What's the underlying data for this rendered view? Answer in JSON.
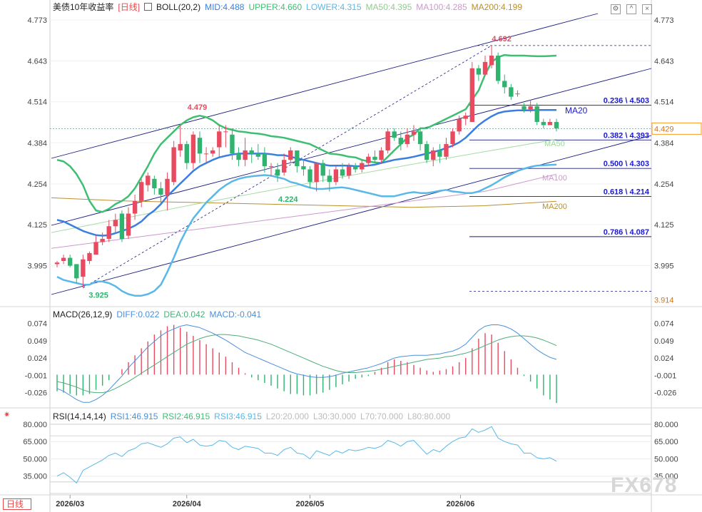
{
  "header": {
    "title": "美债10年收益率",
    "period": "[日线]",
    "boll": {
      "label": "BOLL(20,2)",
      "mid": "MID:4.488",
      "upper": "UPPER:4.660",
      "lower": "LOWER:4.315"
    },
    "ma": {
      "ma50": "MA50:4.395",
      "ma100": "MA100:4.285",
      "ma200": "MA200:4.199"
    }
  },
  "macd_header": {
    "label": "MACD(26,12,9)",
    "diff": "DIFF:0.022",
    "dea": "DEA:0.042",
    "macd": "MACD:-0.041"
  },
  "rsi_header": {
    "label": "RSI(14,14,14)",
    "rsi1": "RSI1:46.915",
    "rsi2": "RSI2:46.915",
    "rsi3": "RSI3:46.915",
    "l20": "L20:20.000",
    "l30": "L30:30.000",
    "l70": "L70:70.000",
    "l80": "L80:80.000"
  },
  "footer": {
    "period_tag": "日线",
    "watermark": "FX678"
  },
  "colors": {
    "up": "#e84a5f",
    "down": "#2fb36f",
    "ma20": "#3a7fdf",
    "bb": "#58b8e8",
    "upper": "#3dbf72",
    "ma50": "#a5dca5",
    "ma100": "#cc99cc",
    "ma200": "#b8902e",
    "channel": "#1a1a80",
    "price_box": "#f59b1d",
    "diff": "#4a90d9",
    "dea": "#4caf7a"
  },
  "chart_data": {
    "type": "candlestick",
    "x_ticks": [
      "2026/03",
      "2026/04",
      "2026/05",
      "2026/06"
    ],
    "main_y_ticks": [
      4.773,
      4.643,
      4.514,
      4.384,
      4.254,
      4.125,
      3.995
    ],
    "main_ylim": [
      3.87,
      4.8
    ],
    "price_labels": [
      "4.429",
      "3.914"
    ],
    "annotations": [
      "4.692",
      "4.479",
      "4.224",
      "3.925"
    ],
    "candles": [
      [
        4.0,
        4.005,
        4.01,
        3.99
      ],
      [
        4.01,
        4.02,
        4.03,
        4.0
      ],
      [
        4.02,
        3.995,
        4.03,
        3.99
      ],
      [
        4.0,
        3.955,
        4.0,
        3.94
      ],
      [
        3.96,
        4.015,
        4.03,
        3.925
      ],
      [
        4.01,
        4.035,
        4.04,
        4.0
      ],
      [
        4.03,
        4.07,
        4.09,
        4.03
      ],
      [
        4.07,
        4.08,
        4.1,
        4.06
      ],
      [
        4.08,
        4.12,
        4.14,
        4.07
      ],
      [
        4.12,
        4.14,
        4.16,
        4.1
      ],
      [
        4.16,
        4.08,
        4.17,
        4.07
      ],
      [
        4.09,
        4.16,
        4.18,
        4.08
      ],
      [
        4.16,
        4.2,
        4.22,
        4.14
      ],
      [
        4.2,
        4.26,
        4.27,
        4.18
      ],
      [
        4.25,
        4.28,
        4.29,
        4.23
      ],
      [
        4.27,
        4.24,
        4.28,
        4.22
      ],
      [
        4.24,
        4.22,
        4.26,
        4.19
      ],
      [
        4.22,
        4.27,
        4.29,
        4.17
      ],
      [
        4.26,
        4.37,
        4.39,
        4.25
      ],
      [
        4.36,
        4.38,
        4.44,
        4.34
      ],
      [
        4.38,
        4.32,
        4.39,
        4.3
      ],
      [
        4.32,
        4.41,
        4.42,
        4.3
      ],
      [
        4.4,
        4.35,
        4.42,
        4.32
      ],
      [
        4.35,
        4.35,
        4.37,
        4.32
      ],
      [
        4.35,
        4.36,
        4.37,
        4.34
      ],
      [
        4.37,
        4.42,
        4.44,
        4.34
      ],
      [
        4.42,
        4.42,
        4.44,
        4.37
      ],
      [
        4.41,
        4.35,
        4.43,
        4.33
      ],
      [
        4.35,
        4.33,
        4.37,
        4.31
      ],
      [
        4.33,
        4.36,
        4.4,
        4.31
      ],
      [
        4.36,
        4.35,
        4.37,
        4.32
      ],
      [
        4.35,
        4.34,
        4.38,
        4.33
      ],
      [
        4.35,
        4.31,
        4.37,
        4.29
      ],
      [
        4.31,
        4.31,
        4.32,
        4.28
      ],
      [
        4.3,
        4.28,
        4.32,
        4.26
      ],
      [
        4.29,
        4.33,
        4.35,
        4.28
      ],
      [
        4.33,
        4.36,
        4.37,
        4.32
      ],
      [
        4.36,
        4.31,
        4.36,
        4.29
      ],
      [
        4.31,
        4.3,
        4.33,
        4.28
      ],
      [
        4.3,
        4.26,
        4.31,
        4.24
      ],
      [
        4.26,
        4.32,
        4.32,
        4.23
      ],
      [
        4.32,
        4.28,
        4.33,
        4.26
      ],
      [
        4.28,
        4.26,
        4.3,
        4.23
      ],
      [
        4.26,
        4.3,
        4.31,
        4.25
      ],
      [
        4.3,
        4.28,
        4.32,
        4.27
      ],
      [
        4.28,
        4.31,
        4.32,
        4.27
      ],
      [
        4.31,
        4.3,
        4.32,
        4.29
      ],
      [
        4.3,
        4.32,
        4.33,
        4.29
      ],
      [
        4.32,
        4.34,
        4.35,
        4.31
      ],
      [
        4.34,
        4.33,
        4.36,
        4.32
      ],
      [
        4.33,
        4.36,
        4.37,
        4.32
      ],
      [
        4.36,
        4.42,
        4.43,
        4.35
      ],
      [
        4.42,
        4.4,
        4.43,
        4.39
      ],
      [
        4.4,
        4.38,
        4.42,
        4.36
      ],
      [
        4.38,
        4.41,
        4.43,
        4.37
      ],
      [
        4.41,
        4.42,
        4.44,
        4.39
      ],
      [
        4.42,
        4.38,
        4.43,
        4.36
      ],
      [
        4.38,
        4.33,
        4.39,
        4.32
      ],
      [
        4.33,
        4.36,
        4.37,
        4.31
      ],
      [
        4.36,
        4.34,
        4.38,
        4.32
      ],
      [
        4.34,
        4.38,
        4.4,
        4.33
      ],
      [
        4.38,
        4.42,
        4.43,
        4.37
      ],
      [
        4.42,
        4.46,
        4.47,
        4.41
      ],
      [
        4.46,
        4.47,
        4.48,
        4.44
      ],
      [
        4.45,
        4.62,
        4.64,
        4.45
      ],
      [
        4.62,
        4.6,
        4.63,
        4.58
      ],
      [
        4.6,
        4.64,
        4.66,
        4.6
      ],
      [
        4.63,
        4.66,
        4.692,
        4.62
      ],
      [
        4.66,
        4.58,
        4.67,
        4.57
      ],
      [
        4.58,
        4.56,
        4.6,
        4.54
      ],
      [
        4.56,
        4.53,
        4.57,
        4.52
      ],
      [
        4.54,
        4.54,
        4.55,
        4.53
      ],
      [
        4.5,
        4.49,
        4.51,
        4.48
      ],
      [
        4.49,
        4.5,
        4.52,
        4.48
      ],
      [
        4.5,
        4.45,
        4.51,
        4.44
      ],
      [
        4.45,
        4.44,
        4.46,
        4.43
      ],
      [
        4.44,
        4.45,
        4.46,
        4.44
      ],
      [
        4.45,
        4.43,
        4.46,
        4.42
      ]
    ],
    "boll_upper": [
      4.33,
      4.325,
      4.31,
      4.285,
      4.25,
      4.2,
      4.17,
      4.165,
      4.175,
      4.19,
      4.2,
      4.215,
      4.24,
      4.275,
      4.31,
      4.35,
      4.38,
      4.4,
      4.42,
      4.44,
      4.455,
      4.465,
      4.47,
      4.465,
      4.455,
      4.44,
      4.43,
      4.425,
      4.42,
      4.418,
      4.415,
      4.413,
      4.41,
      4.405,
      4.403,
      4.4,
      4.395,
      4.39,
      4.385,
      4.38,
      4.37,
      4.36,
      4.35,
      4.348,
      4.345,
      4.34,
      4.338,
      4.33,
      4.325,
      4.322,
      4.32,
      4.34,
      4.36,
      4.38,
      4.4,
      4.41,
      4.43,
      4.43,
      4.44,
      4.45,
      4.46,
      4.47,
      4.48,
      4.49,
      4.52,
      4.55,
      4.6,
      4.64,
      4.655,
      4.662,
      4.66,
      4.66,
      4.66,
      4.659,
      4.658,
      4.658,
      4.659,
      4.66
    ],
    "boll_mid": [
      4.14,
      4.135,
      4.125,
      4.115,
      4.105,
      4.098,
      4.092,
      4.09,
      4.092,
      4.098,
      4.105,
      4.112,
      4.122,
      4.135,
      4.155,
      4.17,
      4.19,
      4.215,
      4.235,
      4.255,
      4.275,
      4.295,
      4.31,
      4.32,
      4.33,
      4.338,
      4.343,
      4.347,
      4.35,
      4.35,
      4.35,
      4.35,
      4.35,
      4.348,
      4.345,
      4.345,
      4.34,
      4.335,
      4.33,
      4.325,
      4.32,
      4.315,
      4.312,
      4.312,
      4.312,
      4.312,
      4.31,
      4.31,
      4.312,
      4.315,
      4.32,
      4.325,
      4.33,
      4.333,
      4.336,
      4.34,
      4.345,
      4.35,
      4.355,
      4.36,
      4.368,
      4.375,
      4.385,
      4.4,
      4.42,
      4.44,
      4.455,
      4.468,
      4.478,
      4.483,
      4.485,
      4.487,
      4.487,
      4.487,
      4.488,
      4.488,
      4.488,
      4.488
    ],
    "boll_lower": [
      3.96,
      3.95,
      3.945,
      3.94,
      3.935,
      3.935,
      3.945,
      3.945,
      3.94,
      3.93,
      3.915,
      3.905,
      3.9,
      3.9,
      3.905,
      3.915,
      3.935,
      3.975,
      4.02,
      4.07,
      4.11,
      4.145,
      4.17,
      4.195,
      4.215,
      4.235,
      4.25,
      4.262,
      4.27,
      4.275,
      4.278,
      4.28,
      4.282,
      4.28,
      4.275,
      4.27,
      4.26,
      4.255,
      4.248,
      4.242,
      4.238,
      4.238,
      4.24,
      4.242,
      4.243,
      4.24,
      4.235,
      4.23,
      4.225,
      4.22,
      4.215,
      4.215,
      4.215,
      4.22,
      4.225,
      4.228,
      4.225,
      4.225,
      4.228,
      4.232,
      4.235,
      4.23,
      4.228,
      4.225,
      4.225,
      4.23,
      4.24,
      4.25,
      4.262,
      4.275,
      4.285,
      4.295,
      4.302,
      4.308,
      4.312,
      4.313,
      4.314,
      4.315
    ],
    "ma50": [
      4.1,
      4.145,
      4.19,
      4.232,
      4.275,
      4.316,
      4.356,
      4.395
    ],
    "ma100": [
      4.05,
      4.08,
      4.11,
      4.14,
      4.17,
      4.2,
      4.23,
      4.285
    ],
    "ma200": [
      4.21,
      4.2,
      4.195,
      4.19,
      4.185,
      4.18,
      4.185,
      4.199
    ],
    "fib_levels": [
      {
        "label": "0.236 \\ 4.503",
        "value": 4.503
      },
      {
        "label": "0.382 \\ 4.393",
        "value": 4.393
      },
      {
        "label": "0.500 \\ 4.303",
        "value": 4.303
      },
      {
        "label": "0.618 \\ 4.214",
        "value": 4.214
      },
      {
        "label": "0.786 \\ 4.087",
        "value": 4.087
      }
    ],
    "ma_labels": [
      "MA20",
      "MA50",
      "MA100",
      "MA200"
    ],
    "macd": {
      "y_ticks": [
        0.074,
        0.049,
        0.024,
        -0.001,
        -0.026
      ],
      "ylim": [
        -0.046,
        0.088
      ],
      "hist": [
        -0.024,
        -0.026,
        -0.028,
        -0.03,
        -0.03,
        -0.028,
        -0.022,
        -0.016,
        -0.008,
        0.0,
        0.008,
        0.018,
        0.028,
        0.038,
        0.048,
        0.058,
        0.064,
        0.07,
        0.072,
        0.068,
        0.062,
        0.056,
        0.05,
        0.044,
        0.038,
        0.032,
        0.026,
        0.018,
        0.01,
        0.002,
        -0.004,
        -0.008,
        -0.012,
        -0.016,
        -0.02,
        -0.024,
        -0.028,
        -0.028,
        -0.03,
        -0.03,
        -0.028,
        -0.026,
        -0.022,
        -0.018,
        -0.014,
        -0.01,
        -0.006,
        -0.004,
        -0.002,
        0.004,
        0.01,
        0.018,
        0.022,
        0.02,
        0.018,
        0.014,
        0.01,
        0.006,
        0.004,
        0.006,
        0.008,
        0.012,
        0.018,
        0.024,
        0.038,
        0.052,
        0.06,
        0.058,
        0.046,
        0.034,
        0.022,
        0.01,
        -0.002,
        -0.01,
        -0.02,
        -0.03,
        -0.036,
        -0.041
      ],
      "diff": [
        -0.02,
        -0.024,
        -0.03,
        -0.036,
        -0.04,
        -0.04,
        -0.036,
        -0.03,
        -0.022,
        -0.012,
        -0.002,
        0.01,
        0.02,
        0.03,
        0.04,
        0.048,
        0.056,
        0.062,
        0.066,
        0.07,
        0.072,
        0.07,
        0.068,
        0.064,
        0.06,
        0.055,
        0.05,
        0.044,
        0.038,
        0.032,
        0.028,
        0.024,
        0.02,
        0.016,
        0.012,
        0.008,
        0.004,
        0.001,
        -0.001,
        -0.003,
        -0.004,
        -0.004,
        -0.003,
        -0.001,
        0.002,
        0.004,
        0.006,
        0.008,
        0.01,
        0.013,
        0.016,
        0.02,
        0.024,
        0.026,
        0.027,
        0.028,
        0.028,
        0.028,
        0.029,
        0.03,
        0.032,
        0.034,
        0.038,
        0.044,
        0.054,
        0.064,
        0.07,
        0.072,
        0.072,
        0.07,
        0.066,
        0.06,
        0.052,
        0.044,
        0.036,
        0.03,
        0.025,
        0.022
      ],
      "dea": [
        -0.01,
        -0.012,
        -0.015,
        -0.018,
        -0.022,
        -0.025,
        -0.026,
        -0.026,
        -0.024,
        -0.02,
        -0.015,
        -0.01,
        -0.004,
        0.002,
        0.008,
        0.014,
        0.02,
        0.026,
        0.032,
        0.038,
        0.044,
        0.048,
        0.052,
        0.055,
        0.057,
        0.058,
        0.058,
        0.057,
        0.056,
        0.054,
        0.052,
        0.05,
        0.047,
        0.044,
        0.04,
        0.036,
        0.032,
        0.028,
        0.024,
        0.02,
        0.016,
        0.012,
        0.009,
        0.006,
        0.004,
        0.003,
        0.003,
        0.004,
        0.005,
        0.006,
        0.008,
        0.01,
        0.012,
        0.014,
        0.016,
        0.018,
        0.02,
        0.022,
        0.023,
        0.024,
        0.026,
        0.027,
        0.029,
        0.031,
        0.034,
        0.038,
        0.042,
        0.046,
        0.05,
        0.053,
        0.055,
        0.056,
        0.056,
        0.055,
        0.053,
        0.05,
        0.046,
        0.042
      ]
    },
    "rsi": {
      "y_ticks": [
        80.0,
        65.0,
        50.0,
        35.0
      ],
      "tick_labels": [
        "80.000",
        "65.000",
        "50.000",
        "35.000"
      ],
      "ylim": [
        20,
        88
      ],
      "values": [
        35,
        38,
        34,
        29,
        40,
        43,
        46,
        49,
        53,
        55,
        52,
        57,
        59,
        63,
        64,
        62,
        60,
        63,
        68,
        69,
        64,
        67,
        62,
        61,
        62,
        66,
        65,
        60,
        58,
        61,
        60,
        59,
        55,
        55,
        53,
        58,
        60,
        55,
        54,
        50,
        57,
        55,
        53,
        57,
        55,
        58,
        57,
        58,
        60,
        59,
        61,
        66,
        64,
        61,
        65,
        66,
        60,
        54,
        58,
        56,
        61,
        65,
        68,
        69,
        76,
        73,
        75,
        78,
        68,
        65,
        63,
        62,
        55,
        55,
        51,
        50,
        51,
        48
      ]
    }
  }
}
